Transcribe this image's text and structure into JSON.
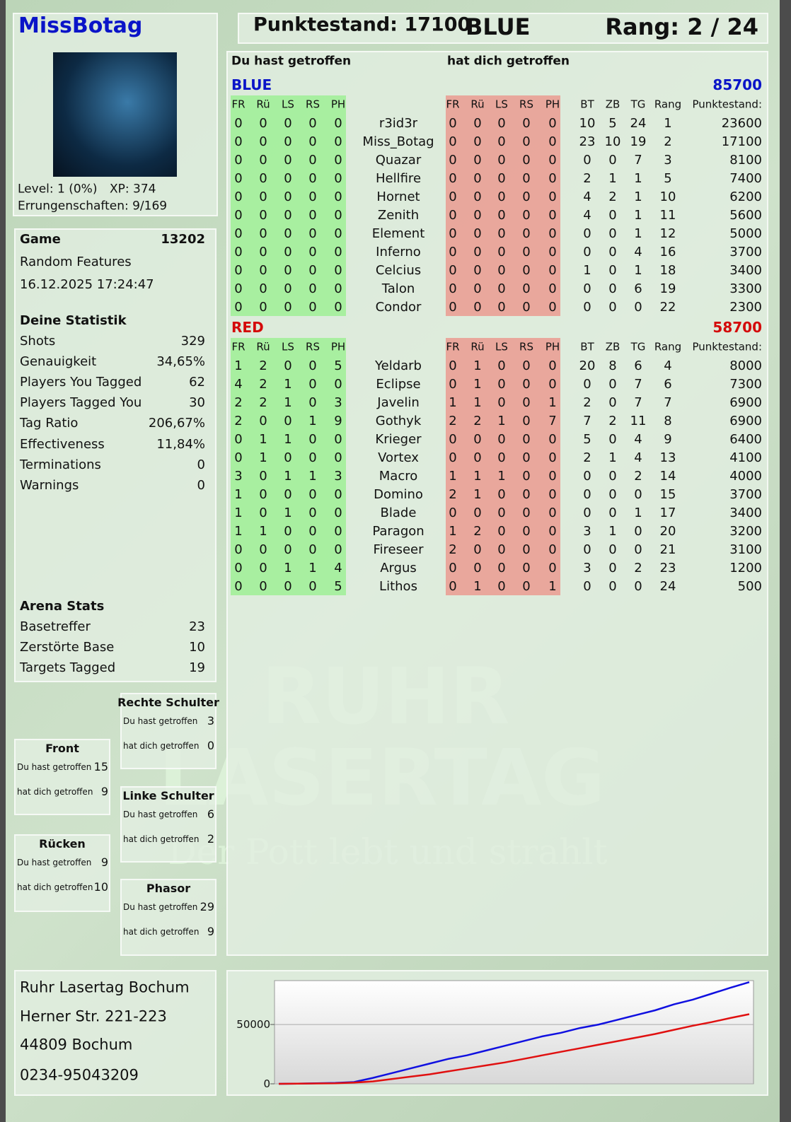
{
  "header": {
    "name": "MissBotag",
    "score": "Punktestand: 17100",
    "team": "BLUE",
    "rank": "Rang: 2 / 24"
  },
  "profile": {
    "level": "Level: 1 (0%)",
    "xp": "XP: 374",
    "achievements": "Errungenschaften: 9/169"
  },
  "game": {
    "label": "Game",
    "id": 13202,
    "mode": "Random Features",
    "date": "16.12.2025 17:24:47"
  },
  "stats": {
    "title": "Deine Statistik",
    "rows": [
      [
        "Shots",
        329
      ],
      [
        "Genauigkeit",
        "34,65%"
      ],
      [
        "Players You Tagged",
        62
      ],
      [
        "Players Tagged You",
        30
      ],
      [
        "Tag Ratio",
        "206,67%"
      ],
      [
        "Effectiveness",
        "11,84%"
      ],
      [
        "Terminations",
        0
      ],
      [
        "Warnings",
        0
      ]
    ]
  },
  "arena": {
    "title": "Arena Stats",
    "rows": [
      [
        "Basetreffer",
        23
      ],
      [
        "Zerstörte Base",
        10
      ],
      [
        "Targets Tagged",
        19
      ]
    ]
  },
  "zones": [
    {
      "title": "Rechte Schulter",
      "rows": [
        [
          "Du hast getroffen",
          3
        ],
        [
          "hat dich getroffen",
          0
        ]
      ]
    },
    {
      "title": "Front",
      "rows": [
        [
          "Du hast getroffen",
          15
        ],
        [
          "hat dich getroffen",
          9
        ]
      ]
    },
    {
      "title": "Linke Schulter",
      "rows": [
        [
          "Du hast getroffen",
          6
        ],
        [
          "hat dich getroffen",
          2
        ]
      ]
    },
    {
      "title": "Rücken",
      "rows": [
        [
          "Du hast getroffen",
          9
        ],
        [
          "hat dich getroffen",
          10
        ]
      ]
    },
    {
      "title": "Phasor",
      "rows": [
        [
          "Du hast getroffen",
          29
        ],
        [
          "hat dich getroffen",
          9
        ]
      ]
    }
  ],
  "address": [
    "Ruhr Lasertag Bochum",
    "Herner Str. 221-223",
    "44809 Bochum",
    "0234-95043209"
  ],
  "watermark": {
    "line1": "RUHR",
    "line2": "LASERTAG",
    "tagline": "Der Pott lebt und strahlt"
  },
  "scoreboard": {
    "you_hit": "Du hast getroffen",
    "hit_you": "hat dich getroffen",
    "teams": [
      {
        "name": "BLUE",
        "total": 85700,
        "color": "#0a14c8",
        "hit_columns": [
          "FR",
          "Rü",
          "LS",
          "RS",
          "PH"
        ],
        "got_columns": [
          "FR",
          "Rü",
          "LS",
          "RS",
          "PH"
        ],
        "stat_columns": [
          "BT",
          "ZB",
          "TG",
          "Rang",
          "Punktestand:"
        ],
        "players": [
          {
            "hit": [
              0,
              0,
              0,
              0,
              0
            ],
            "name": "r3id3r",
            "got": [
              0,
              0,
              0,
              0,
              0
            ],
            "stats": [
              10,
              5,
              24,
              1,
              23600
            ]
          },
          {
            "hit": [
              0,
              0,
              0,
              0,
              0
            ],
            "name": "Miss_Botag",
            "got": [
              0,
              0,
              0,
              0,
              0
            ],
            "stats": [
              23,
              10,
              19,
              2,
              17100
            ]
          },
          {
            "hit": [
              0,
              0,
              0,
              0,
              0
            ],
            "name": "Quazar",
            "got": [
              0,
              0,
              0,
              0,
              0
            ],
            "stats": [
              0,
              0,
              7,
              3,
              8100
            ]
          },
          {
            "hit": [
              0,
              0,
              0,
              0,
              0
            ],
            "name": "Hellfire",
            "got": [
              0,
              0,
              0,
              0,
              0
            ],
            "stats": [
              2,
              1,
              1,
              5,
              7400
            ]
          },
          {
            "hit": [
              0,
              0,
              0,
              0,
              0
            ],
            "name": "Hornet",
            "got": [
              0,
              0,
              0,
              0,
              0
            ],
            "stats": [
              4,
              2,
              1,
              10,
              6200
            ]
          },
          {
            "hit": [
              0,
              0,
              0,
              0,
              0
            ],
            "name": "Zenith",
            "got": [
              0,
              0,
              0,
              0,
              0
            ],
            "stats": [
              4,
              0,
              1,
              11,
              5600
            ]
          },
          {
            "hit": [
              0,
              0,
              0,
              0,
              0
            ],
            "name": "Element",
            "got": [
              0,
              0,
              0,
              0,
              0
            ],
            "stats": [
              0,
              0,
              1,
              12,
              5000
            ]
          },
          {
            "hit": [
              0,
              0,
              0,
              0,
              0
            ],
            "name": "Inferno",
            "got": [
              0,
              0,
              0,
              0,
              0
            ],
            "stats": [
              0,
              0,
              4,
              16,
              3700
            ]
          },
          {
            "hit": [
              0,
              0,
              0,
              0,
              0
            ],
            "name": "Celcius",
            "got": [
              0,
              0,
              0,
              0,
              0
            ],
            "stats": [
              1,
              0,
              1,
              18,
              3400
            ]
          },
          {
            "hit": [
              0,
              0,
              0,
              0,
              0
            ],
            "name": "Talon",
            "got": [
              0,
              0,
              0,
              0,
              0
            ],
            "stats": [
              0,
              0,
              6,
              19,
              3300
            ]
          },
          {
            "hit": [
              0,
              0,
              0,
              0,
              0
            ],
            "name": "Condor",
            "got": [
              0,
              0,
              0,
              0,
              0
            ],
            "stats": [
              0,
              0,
              0,
              22,
              2300
            ]
          }
        ]
      },
      {
        "name": "RED",
        "total": 58700,
        "color": "#d40a0a",
        "hit_columns": [
          "FR",
          "Rü",
          "LS",
          "RS",
          "PH"
        ],
        "got_columns": [
          "FR",
          "Rü",
          "LS",
          "RS",
          "PH"
        ],
        "stat_columns": [
          "BT",
          "ZB",
          "TG",
          "Rang",
          "Punktestand:"
        ],
        "players": [
          {
            "hit": [
              1,
              2,
              0,
              0,
              5
            ],
            "name": "Yeldarb",
            "got": [
              0,
              1,
              0,
              0,
              0
            ],
            "stats": [
              20,
              8,
              6,
              4,
              8000
            ]
          },
          {
            "hit": [
              4,
              2,
              1,
              0,
              0
            ],
            "name": "Eclipse",
            "got": [
              0,
              1,
              0,
              0,
              0
            ],
            "stats": [
              0,
              0,
              7,
              6,
              7300
            ]
          },
          {
            "hit": [
              2,
              2,
              1,
              0,
              3
            ],
            "name": "Javelin",
            "got": [
              1,
              1,
              0,
              0,
              1
            ],
            "stats": [
              2,
              0,
              7,
              7,
              6900
            ]
          },
          {
            "hit": [
              2,
              0,
              0,
              1,
              9
            ],
            "name": "Gothyk",
            "got": [
              2,
              2,
              1,
              0,
              7
            ],
            "stats": [
              7,
              2,
              11,
              8,
              6900
            ]
          },
          {
            "hit": [
              0,
              1,
              1,
              0,
              0
            ],
            "name": "Krieger",
            "got": [
              0,
              0,
              0,
              0,
              0
            ],
            "stats": [
              5,
              0,
              4,
              9,
              6400
            ]
          },
          {
            "hit": [
              0,
              1,
              0,
              0,
              0
            ],
            "name": "Vortex",
            "got": [
              0,
              0,
              0,
              0,
              0
            ],
            "stats": [
              2,
              1,
              4,
              13,
              4100
            ]
          },
          {
            "hit": [
              3,
              0,
              1,
              1,
              3
            ],
            "name": "Macro",
            "got": [
              1,
              1,
              1,
              0,
              0
            ],
            "stats": [
              0,
              0,
              2,
              14,
              4000
            ]
          },
          {
            "hit": [
              1,
              0,
              0,
              0,
              0
            ],
            "name": "Domino",
            "got": [
              2,
              1,
              0,
              0,
              0
            ],
            "stats": [
              0,
              0,
              0,
              15,
              3700
            ]
          },
          {
            "hit": [
              1,
              0,
              1,
              0,
              0
            ],
            "name": "Blade",
            "got": [
              0,
              0,
              0,
              0,
              0
            ],
            "stats": [
              0,
              0,
              1,
              17,
              3400
            ]
          },
          {
            "hit": [
              1,
              1,
              0,
              0,
              0
            ],
            "name": "Paragon",
            "got": [
              1,
              2,
              0,
              0,
              0
            ],
            "stats": [
              3,
              1,
              0,
              20,
              3200
            ]
          },
          {
            "hit": [
              0,
              0,
              0,
              0,
              0
            ],
            "name": "Fireseer",
            "got": [
              2,
              0,
              0,
              0,
              0
            ],
            "stats": [
              0,
              0,
              0,
              21,
              3100
            ]
          },
          {
            "hit": [
              0,
              0,
              1,
              1,
              4
            ],
            "name": "Argus",
            "got": [
              0,
              0,
              0,
              0,
              0
            ],
            "stats": [
              3,
              0,
              2,
              23,
              1200
            ]
          },
          {
            "hit": [
              0,
              0,
              0,
              0,
              5
            ],
            "name": "Lithos",
            "got": [
              0,
              1,
              0,
              0,
              1
            ],
            "stats": [
              0,
              0,
              0,
              24,
              500
            ]
          }
        ]
      }
    ]
  },
  "chart": {
    "type": "line",
    "ylim": [
      0,
      87000
    ],
    "yticks": [
      0,
      50000
    ],
    "series": [
      {
        "color": "#1010e0",
        "values": [
          0,
          200,
          500,
          800,
          1500,
          5000,
          9000,
          13000,
          17000,
          21000,
          24000,
          28000,
          32000,
          36000,
          40000,
          43000,
          47000,
          50000,
          54000,
          58000,
          62000,
          67000,
          71000,
          76000,
          81000,
          85700
        ]
      },
      {
        "color": "#e01010",
        "values": [
          0,
          100,
          300,
          500,
          1000,
          2000,
          4000,
          6000,
          8000,
          10500,
          13000,
          15500,
          18000,
          21000,
          24000,
          27000,
          30000,
          33000,
          36000,
          39000,
          42000,
          45500,
          49000,
          52000,
          55500,
          58700
        ]
      }
    ]
  }
}
